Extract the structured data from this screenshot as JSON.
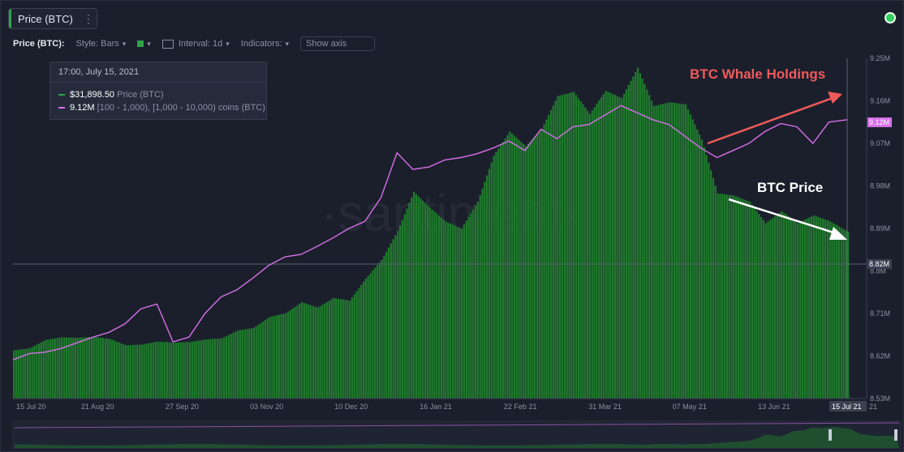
{
  "header": {
    "tab_title": "Price (BTC)",
    "tab_menu_icon": "kebab-icon"
  },
  "toolbar": {
    "metric_label": "Price (BTC):",
    "style_label": "Style: Bars",
    "interval_label": "Interval: 1d",
    "indicators_label": "Indicators:",
    "show_axis_label": "Show axis",
    "series_color": "#2fa34a"
  },
  "tooltip": {
    "date": "17:00, July 15, 2021",
    "price_value": "$31,898.50",
    "price_label": "Price (BTC)",
    "holdings_value": "9.12M",
    "holdings_label": "[100 - 1,000), [1,000 - 10,000) coins (BTC)"
  },
  "annotations": {
    "whale_label": "BTC Whale Holdings",
    "price_label": "BTC Price",
    "whale_color": "#f05a5a",
    "price_color": "#ffffff"
  },
  "watermark": "·santiment·",
  "chart_data": {
    "type": "bar",
    "x_ticks": [
      "15 Jul 20",
      "21 Aug 20",
      "27 Sep 20",
      "03 Nov 20",
      "10 Dec 20",
      "16 Jan 21",
      "22 Feb 21",
      "31 Mar 21",
      "07 May 21",
      "13 Jun 21"
    ],
    "x_current_label": "15 Jul 21",
    "x_current_suffix": "21",
    "right_axis_ticks": [
      "9.25M",
      "9.16M",
      "9.07M",
      "8.98M",
      "8.89M",
      "8.8M",
      "8.71M",
      "8.62M",
      "8.53M"
    ],
    "right_axis_range": [
      8.53,
      9.25
    ],
    "right_axis_unit": "M",
    "current_holdings_badge": "9.12M",
    "current_price_badge": "8.82M",
    "series": [
      {
        "name": "Price (BTC)",
        "kind": "bars",
        "color": "#1f7a2c",
        "weeks": [
          "2020-07-15",
          "2020-07-22",
          "2020-07-29",
          "2020-08-05",
          "2020-08-12",
          "2020-08-19",
          "2020-08-26",
          "2020-09-02",
          "2020-09-09",
          "2020-09-16",
          "2020-09-23",
          "2020-09-30",
          "2020-10-07",
          "2020-10-14",
          "2020-10-21",
          "2020-10-28",
          "2020-11-04",
          "2020-11-11",
          "2020-11-18",
          "2020-11-25",
          "2020-12-02",
          "2020-12-09",
          "2020-12-16",
          "2020-12-23",
          "2020-12-30",
          "2021-01-06",
          "2021-01-13",
          "2021-01-20",
          "2021-01-27",
          "2021-02-03",
          "2021-02-10",
          "2021-02-17",
          "2021-02-24",
          "2021-03-03",
          "2021-03-10",
          "2021-03-17",
          "2021-03-24",
          "2021-03-31",
          "2021-04-07",
          "2021-04-14",
          "2021-04-21",
          "2021-04-28",
          "2021-05-05",
          "2021-05-12",
          "2021-05-19",
          "2021-05-26",
          "2021-06-02",
          "2021-06-09",
          "2021-06-16",
          "2021-06-23",
          "2021-06-30",
          "2021-07-07",
          "2021-07-15"
        ],
        "values": [
          9200,
          9600,
          11200,
          11700,
          11600,
          11800,
          11400,
          10200,
          10300,
          10900,
          10700,
          10800,
          11300,
          11500,
          13000,
          13500,
          15600,
          16300,
          18400,
          17400,
          19200,
          18700,
          22900,
          26500,
          32000,
          39500,
          36500,
          33800,
          32500,
          37600,
          46400,
          51000,
          48200,
          51500,
          57800,
          58600,
          54400,
          58800,
          57400,
          63200,
          55900,
          56600,
          56200,
          49500,
          39200,
          38800,
          37600,
          33500,
          35800,
          33500,
          35000,
          33900,
          31898.5
        ]
      },
      {
        "name": "[100 - 1,000), [1,000 - 10,000) coins (BTC)",
        "kind": "line",
        "color": "#d66fe8",
        "weeks_ref": "same",
        "values": [
          8.612,
          8.625,
          8.628,
          8.636,
          8.648,
          8.66,
          8.67,
          8.688,
          8.72,
          8.73,
          8.65,
          8.66,
          8.71,
          8.745,
          8.76,
          8.785,
          8.812,
          8.83,
          8.835,
          8.852,
          8.87,
          8.89,
          8.905,
          8.955,
          9.05,
          9.015,
          9.02,
          9.035,
          9.04,
          9.048,
          9.06,
          9.075,
          9.055,
          9.1,
          9.08,
          9.105,
          9.11,
          9.13,
          9.15,
          9.135,
          9.12,
          9.11,
          9.085,
          9.06,
          9.04,
          9.055,
          9.07,
          9.095,
          9.112,
          9.105,
          9.07,
          9.115,
          9.12
        ]
      }
    ]
  }
}
